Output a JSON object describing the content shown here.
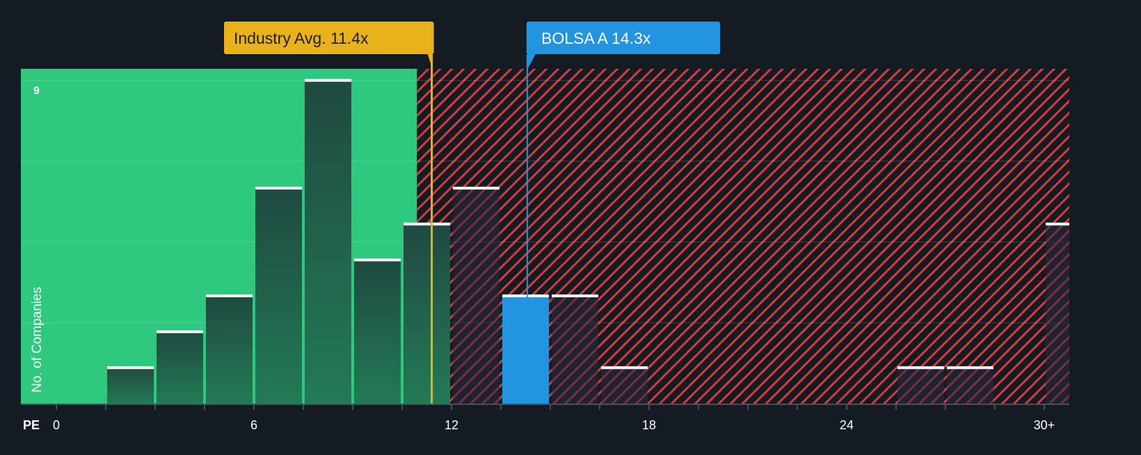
{
  "chart_data": {
    "type": "bar",
    "title": "",
    "xlabel": "PE",
    "ylabel": "No. of Companies",
    "x_ticks": [
      "0",
      "6",
      "12",
      "18",
      "24",
      "30+"
    ],
    "x_tick_values": [
      0,
      6,
      12,
      18,
      24,
      30
    ],
    "y_tick_labels": [
      "9"
    ],
    "y_tick_values": [
      9
    ],
    "xlim": [
      -1.5,
      30.75
    ],
    "ylim": [
      0,
      9.3
    ],
    "bin_width": 1.5,
    "bins": [
      1.5,
      3,
      4.5,
      6,
      7.5,
      9,
      10.5,
      12,
      13.5,
      15,
      16.5,
      18,
      19.5,
      21,
      22.5,
      24,
      25.5,
      27,
      28.5,
      30
    ],
    "values": [
      1,
      2,
      3,
      6,
      9,
      4,
      5,
      6,
      3,
      3,
      1,
      0,
      0,
      0,
      0,
      0,
      1,
      1,
      0,
      5
    ],
    "highlight_bin": 13.5,
    "fair_region_end": 10.95,
    "annotations": [
      {
        "label": "Industry Avg. 11.4x",
        "value": 11.4,
        "color": "#e9b11a"
      },
      {
        "label": "BOLSA A 14.3x",
        "value": 14.3,
        "color": "#2394e0"
      }
    ],
    "colors": {
      "background": "#151b23",
      "green": "#2ec87e",
      "red_hatch": "#d63c3c",
      "highlight": "#2394e0"
    }
  }
}
